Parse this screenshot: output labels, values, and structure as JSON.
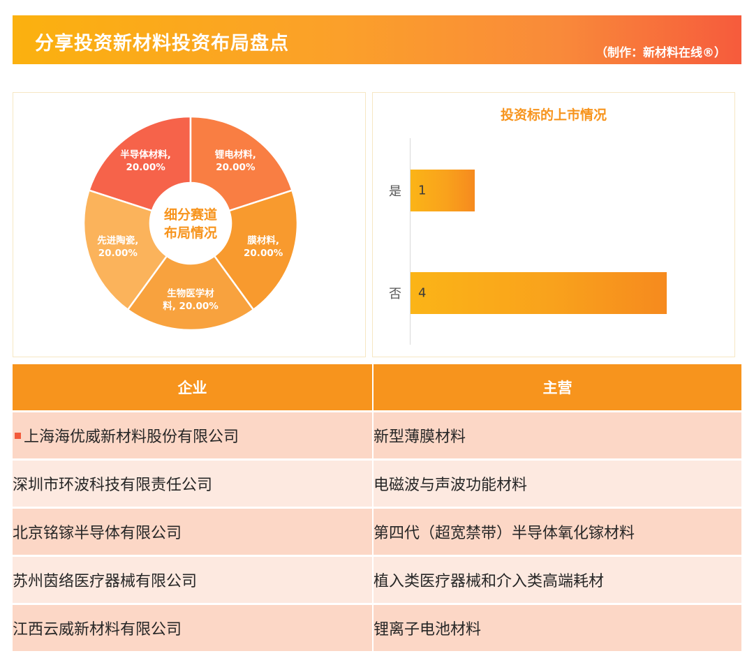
{
  "header": {
    "title": "分享投资新材料投资布局盘点",
    "credit": "（制作：新材料在线®）"
  },
  "colors": {
    "accent": "#f7941d",
    "banner_start": "#fbb10f",
    "banner_end": "#f65b3c",
    "row_odd": "#fcd7c6",
    "row_even": "#fde9e0"
  },
  "chart_data": [
    {
      "type": "pie",
      "title": "细分赛道\n布局情况",
      "center_lines": [
        "细分赛道",
        "布局情况"
      ],
      "slices": [
        {
          "name": "半导体材料",
          "value": 20.0,
          "label": "半导体材料,\n20.00%",
          "color": "#f6634a"
        },
        {
          "name": "锂电材料",
          "value": 20.0,
          "label": "锂电材料,\n20.00%",
          "color": "#f97e43"
        },
        {
          "name": "膜材料",
          "value": 20.0,
          "label": "膜材料,\n20.00%",
          "color": "#f89a2e"
        },
        {
          "name": "生物医学材料",
          "value": 20.0,
          "label": "生物医学材\n料, 20.00%",
          "color": "#f8a23e"
        },
        {
          "name": "先进陶瓷",
          "value": 20.0,
          "label": "先进陶瓷,\n20.00%",
          "color": "#fbb35b"
        }
      ]
    },
    {
      "type": "bar",
      "orientation": "horizontal",
      "title": "投资标的上市情况",
      "categories": [
        "是",
        "否"
      ],
      "values": [
        1,
        4
      ],
      "xlim": [
        0,
        5
      ]
    }
  ],
  "table": {
    "headers": [
      "企业",
      "主营"
    ],
    "rows": [
      {
        "company": "上海海优威新材料股份有限公司",
        "business": "新型薄膜材料"
      },
      {
        "company": "深圳市环波科技有限责任公司",
        "business": "电磁波与声波功能材料"
      },
      {
        "company": "北京铭镓半导体有限公司",
        "business": "第四代（超宽禁带）半导体氧化镓材料"
      },
      {
        "company": "苏州茵络医疗器械有限公司",
        "business": "植入类医疗器械和介入类高端耗材"
      },
      {
        "company": "江西云威新材料有限公司",
        "business": "锂离子电池材料"
      }
    ]
  }
}
